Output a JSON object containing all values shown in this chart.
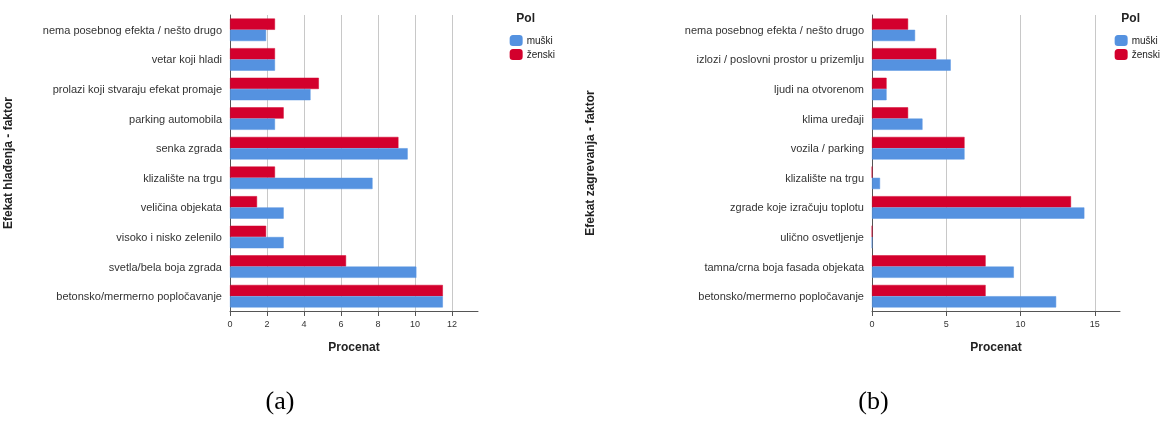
{
  "chart_data": [
    {
      "type": "bar",
      "orientation": "horizontal",
      "ylabel": "Efekat hlađenja - faktor",
      "xlabel": "Procenat",
      "legend_title": "Pol",
      "legend": "top right",
      "grid": "x",
      "xlim": [
        0,
        13.4
      ],
      "xticks": [
        0,
        2,
        4,
        6,
        8,
        10,
        12
      ],
      "annotations": [
        "(a)"
      ],
      "categories": [
        "nema posebnog efekta / nešto drugo",
        "vetar koji hladi",
        "prolazi koji stvaraju efekat promaje",
        "parking automobila",
        "senka zgrada",
        "klizalište na trgu",
        "veličina objekata",
        "visoko i nisko zelenilo",
        "svetla/bela boja zgrada",
        "betonsko/mermerno popločavanje"
      ],
      "series": [
        {
          "name": "ženski",
          "color": "#d3002d",
          "values": [
            2.43,
            2.43,
            4.8,
            2.9,
            9.1,
            2.43,
            1.46,
            1.95,
            6.27,
            11.5
          ]
        },
        {
          "name": "muški",
          "color": "#5592e0",
          "values": [
            1.95,
            2.43,
            4.35,
            2.43,
            9.6,
            7.7,
            2.9,
            2.9,
            10.07,
            11.5
          ]
        }
      ]
    },
    {
      "type": "bar",
      "orientation": "horizontal",
      "ylabel": "Efekat zagrevanja - faktor",
      "xlabel": "Procenat",
      "legend_title": "Pol",
      "legend": "top right",
      "grid": "x",
      "xlim": [
        0,
        16.7
      ],
      "xticks": [
        0,
        5,
        10,
        15
      ],
      "annotations": [
        "(b)"
      ],
      "categories": [
        "nema posebnog efekta / nešto drugo",
        "izlozi / poslovni prostor u prizemlju",
        "ljudi na otvorenom",
        "klima uređaji",
        "vozila / parking",
        "klizalište na trgu",
        "zgrade koje izračuju toplotu",
        "ulično osvetljenje",
        "tamna/crna boja fasada objekata",
        "betonsko/mermerno popločavanje"
      ],
      "series": [
        {
          "name": "ženski",
          "color": "#d3002d",
          "values": [
            2.43,
            4.33,
            0.98,
            2.43,
            6.23,
            0,
            13.4,
            0,
            7.65,
            7.65
          ]
        },
        {
          "name": "muški",
          "color": "#5592e0",
          "values": [
            2.9,
            5.3,
            0.98,
            3.4,
            6.23,
            0.54,
            14.3,
            0,
            9.55,
            12.4
          ]
        }
      ]
    }
  ]
}
